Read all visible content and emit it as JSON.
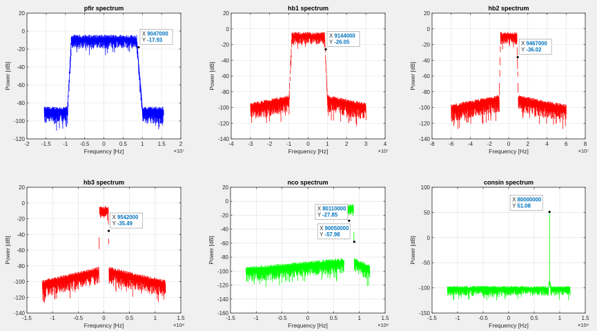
{
  "figure": {
    "background": "#f0f0f0",
    "axes_background": "#ffffff",
    "tip_color": "#0072bd"
  },
  "chart_data": [
    {
      "type": "line",
      "title": "pfir spectrum",
      "xlabel": "Frequency [Hz]",
      "ylabel": "Power [dB]",
      "x_exponent": "×10⁷",
      "x_scale": 10000000,
      "xlim": [
        -2,
        2
      ],
      "ylim": [
        -120,
        20
      ],
      "xticks": [
        -2,
        -1.5,
        -1,
        -0.5,
        0,
        0.5,
        1,
        1.5,
        2
      ],
      "xtick_labels": [
        "-2",
        "-1.5",
        "-1",
        "-0.5",
        "0",
        "0.5",
        "1",
        "1.5",
        "2"
      ],
      "yticks": [
        -120,
        -100,
        -80,
        -60,
        -40,
        -20,
        0,
        20
      ],
      "ytick_labels": [
        "-120",
        "-100",
        "-80",
        "-60",
        "-40",
        "-20",
        "0",
        "20"
      ],
      "grid": true,
      "color": "#0000ff",
      "series": [
        {
          "name": "spectrum",
          "segments": [
            {
              "x0": -1.55,
              "x1": -0.95,
              "level": -88,
              "spread": 12
            },
            {
              "x0": -0.95,
              "x1": -0.85,
              "from": -88,
              "to": -10,
              "spread": 10
            },
            {
              "x0": -0.85,
              "x1": 0.85,
              "level": -8,
              "spread": 9
            },
            {
              "x0": 0.85,
              "x1": 1.0,
              "from": -8,
              "to": -85,
              "spread": 10
            },
            {
              "x0": 1.0,
              "x1": 1.55,
              "level": -88,
              "spread": 12
            }
          ]
        }
      ],
      "datatips": [
        {
          "x_text": "9047000",
          "y_text": "-17.93",
          "x": 0.9047,
          "y": -17.93,
          "side": "right"
        }
      ]
    },
    {
      "type": "line",
      "title": "hb1 spectrum",
      "xlabel": "Frequency [Hz]",
      "ylabel": "Power [dB]",
      "x_exponent": "×10⁷",
      "x_scale": 10000000,
      "xlim": [
        -4,
        4
      ],
      "ylim": [
        -140,
        20
      ],
      "xticks": [
        -4,
        -3,
        -2,
        -1,
        0,
        1,
        2,
        3,
        4
      ],
      "xtick_labels": [
        "-4",
        "-3",
        "-2",
        "-1",
        "0",
        "1",
        "2",
        "3",
        "4"
      ],
      "yticks": [
        -140,
        -120,
        -100,
        -80,
        -60,
        -40,
        -20,
        0,
        20
      ],
      "ytick_labels": [
        "-140",
        "-120",
        "-100",
        "-80",
        "-60",
        "-40",
        "-20",
        "0",
        "20"
      ],
      "grid": true,
      "color": "#ff0000",
      "series": [
        {
          "name": "spectrum",
          "segments": [
            {
              "x0": -3.0,
              "x1": -1.0,
              "from": -98,
              "to": -88,
              "spread": 14
            },
            {
              "x0": -1.0,
              "x1": -0.85,
              "from": -88,
              "to": -8,
              "spread": 10
            },
            {
              "x0": -0.85,
              "x1": 0.85,
              "level": -8,
              "spread": 9
            },
            {
              "x0": 0.85,
              "x1": 1.0,
              "from": -8,
              "to": -88,
              "spread": 10
            },
            {
              "x0": 1.0,
              "x1": 3.0,
              "from": -88,
              "to": -98,
              "spread": 14
            }
          ]
        }
      ],
      "datatips": [
        {
          "x_text": "9144000",
          "y_text": "-26.05",
          "x": 0.9144,
          "y": -26.05,
          "side": "right"
        }
      ]
    },
    {
      "type": "line",
      "title": "hb2 spectrum",
      "xlabel": "Frequency [Hz]",
      "ylabel": "Power [dB]",
      "x_exponent": "×10⁷",
      "x_scale": 10000000,
      "xlim": [
        -8,
        8
      ],
      "ylim": [
        -140,
        20
      ],
      "xticks": [
        -8,
        -6,
        -4,
        -2,
        0,
        2,
        4,
        6,
        8
      ],
      "xtick_labels": [
        "-8",
        "-6",
        "-4",
        "-2",
        "0",
        "2",
        "4",
        "6",
        "8"
      ],
      "yticks": [
        -140,
        -120,
        -100,
        -80,
        -60,
        -40,
        -20,
        0,
        20
      ],
      "ytick_labels": [
        "-140",
        "-120",
        "-100",
        "-80",
        "-60",
        "-40",
        "-20",
        "0",
        "20"
      ],
      "grid": true,
      "color": "#ff0000",
      "series": [
        {
          "name": "spectrum",
          "segments": [
            {
              "x0": -6.0,
              "x1": -1.0,
              "from": -100,
              "to": -88,
              "spread": 14
            },
            {
              "x0": -1.0,
              "x1": -0.85,
              "from": -88,
              "to": -8,
              "spread": 10
            },
            {
              "x0": -0.85,
              "x1": 0.85,
              "level": -8,
              "spread": 9
            },
            {
              "x0": 0.85,
              "x1": 1.0,
              "from": -8,
              "to": -88,
              "spread": 10
            },
            {
              "x0": 1.0,
              "x1": 6.0,
              "from": -88,
              "to": -100,
              "spread": 14
            }
          ]
        }
      ],
      "datatips": [
        {
          "x_text": "9467000",
          "y_text": "-36.02",
          "x": 0.9467,
          "y": -36.02,
          "side": "right"
        }
      ]
    },
    {
      "type": "line",
      "title": "hb3 spectrum",
      "xlabel": "Frequency [Hz]",
      "ylabel": "Power [dB]",
      "x_exponent": "×10⁸",
      "x_scale": 100000000,
      "xlim": [
        -1.5,
        1.5
      ],
      "ylim": [
        -140,
        20
      ],
      "xticks": [
        -1.5,
        -1,
        -0.5,
        0,
        0.5,
        1,
        1.5
      ],
      "xtick_labels": [
        "-1.5",
        "-1",
        "-0.5",
        "0",
        "0.5",
        "1",
        "1.5"
      ],
      "yticks": [
        -140,
        -120,
        -100,
        -80,
        -60,
        -40,
        -20,
        0,
        20
      ],
      "ytick_labels": [
        "-140",
        "-120",
        "-100",
        "-80",
        "-60",
        "-40",
        "-20",
        "0",
        "20"
      ],
      "grid": true,
      "color": "#ff0000",
      "series": [
        {
          "name": "spectrum",
          "segments": [
            {
              "x0": -1.2,
              "x1": -0.1,
              "from": -102,
              "to": -85,
              "spread": 14
            },
            {
              "x0": -0.1,
              "x1": -0.085,
              "from": -85,
              "to": -8,
              "spread": 10
            },
            {
              "x0": -0.085,
              "x1": 0.085,
              "level": -8,
              "spread": 9
            },
            {
              "x0": 0.085,
              "x1": 0.1,
              "from": -8,
              "to": -85,
              "spread": 10
            },
            {
              "x0": 0.1,
              "x1": 1.2,
              "from": -85,
              "to": -102,
              "spread": 14
            }
          ]
        }
      ],
      "datatips": [
        {
          "x_text": "9542000",
          "y_text": "-35.49",
          "x": 0.09542,
          "y": -35.49,
          "side": "right"
        }
      ]
    },
    {
      "type": "line",
      "title": "nco spectrum",
      "xlabel": "Frequency [Hz]",
      "ylabel": "Power [dB]",
      "x_exponent": "×10⁸",
      "x_scale": 100000000,
      "xlim": [
        -1.5,
        1.5
      ],
      "ylim": [
        -160,
        20
      ],
      "xticks": [
        -1.5,
        -1,
        -0.5,
        0,
        0.5,
        1,
        1.5
      ],
      "xtick_labels": [
        "-1.5",
        "-1",
        "-0.5",
        "0",
        "0.5",
        "1",
        "1.5"
      ],
      "yticks": [
        -160,
        -140,
        -120,
        -100,
        -80,
        -60,
        -40,
        -20,
        0,
        20
      ],
      "ytick_labels": [
        "-160",
        "-140",
        "-120",
        "-100",
        "-80",
        "-60",
        "-40",
        "-20",
        "0",
        "20"
      ],
      "grid": true,
      "color": "#00ff00",
      "series": [
        {
          "name": "spectrum",
          "segments": [
            {
              "x0": -1.2,
              "x1": 0.7,
              "from": -98,
              "to": -85,
              "spread": 14
            },
            {
              "x0": 0.7,
              "x1": 0.715,
              "from": -85,
              "to": -8,
              "spread": 10
            },
            {
              "x0": 0.715,
              "x1": 0.885,
              "level": -8,
              "spread": 9
            },
            {
              "x0": 0.885,
              "x1": 0.9,
              "from": -8,
              "to": -85,
              "spread": 10
            },
            {
              "x0": 0.9,
              "x1": 1.2,
              "from": -85,
              "to": -95,
              "spread": 14
            }
          ]
        }
      ],
      "datatips": [
        {
          "x_text": "80110000",
          "y_text": "-27.85",
          "x": 0.8011,
          "y": -27.85,
          "side": "left"
        },
        {
          "x_text": "90050000",
          "y_text": "-57.98",
          "x": 0.9005,
          "y": -57.98,
          "side": "left-low"
        }
      ]
    },
    {
      "type": "line",
      "title": "consin spectrum",
      "xlabel": "Frequency [Hz]",
      "ylabel": "Power [dB]",
      "x_exponent": "×10⁸",
      "x_scale": 100000000,
      "xlim": [
        -1.5,
        1.5
      ],
      "ylim": [
        -150,
        100
      ],
      "xticks": [
        -1.5,
        -1,
        -0.5,
        0,
        0.5,
        1,
        1.5
      ],
      "xtick_labels": [
        "-1.5",
        "-1",
        "-0.5",
        "0",
        "0.5",
        "1",
        "1.5"
      ],
      "yticks": [
        -150,
        -100,
        -50,
        0,
        50,
        100
      ],
      "ytick_labels": [
        "-150",
        "-100",
        "-50",
        "0",
        "50",
        "100"
      ],
      "grid": true,
      "color": "#00ff00",
      "series": [
        {
          "name": "spectrum",
          "segments": [
            {
              "x0": -1.2,
              "x1": 0.78,
              "level": -100,
              "spread": 12
            },
            {
              "x0": 0.78,
              "x1": 0.8,
              "from": -95,
              "to": -85,
              "spread": 6
            },
            {
              "x0": 0.8,
              "x1": 0.82,
              "from": -85,
              "to": -95,
              "spread": 6
            },
            {
              "x0": 0.82,
              "x1": 1.2,
              "level": -100,
              "spread": 12
            }
          ],
          "spike": {
            "x": 0.8,
            "y": 51.08
          }
        }
      ],
      "datatips": [
        {
          "x_text": "80000000",
          "y_text": "51.08",
          "x": 0.8,
          "y": 51.08,
          "side": "left-up"
        }
      ]
    }
  ]
}
